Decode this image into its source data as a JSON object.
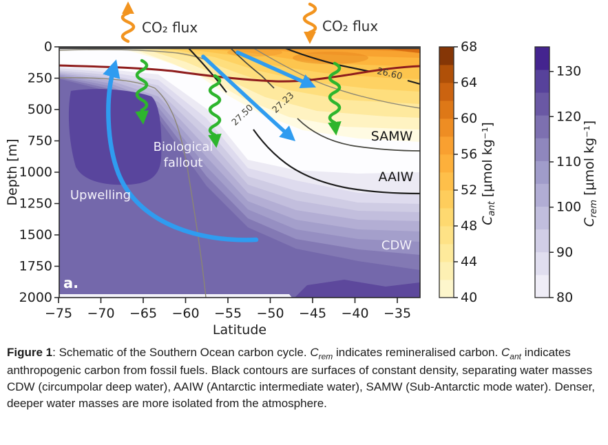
{
  "figure": {
    "panel_label": "a.",
    "xlabel": "Latitude",
    "ylabel": "Depth [m]",
    "xticks": [
      "−75",
      "−70",
      "−65",
      "−60",
      "−55",
      "−50",
      "−45",
      "−40",
      "−35"
    ],
    "yticks": [
      "0",
      "250",
      "500",
      "750",
      "1000",
      "1250",
      "1500",
      "1750",
      "2000"
    ],
    "annotations": {
      "co2_left": "CO₂ flux",
      "co2_right": "CO₂ flux",
      "bio_line1": "Biological",
      "bio_line2": "fallout",
      "upwelling": "Upwelling",
      "samw": "SAMW",
      "aaiw": "AAIW",
      "cdw": "CDW",
      "contour_2660": "26.60",
      "contour_2723": "27.23",
      "contour_2750": "27.50"
    },
    "colors": {
      "arrow_blue": "#2f9cf0",
      "arrow_green": "#2db52d",
      "arrow_orange": "#f2941f",
      "mixed_layer_red": "#8e1c1c",
      "deep_purple": "#59459d",
      "dark_orange": "#d96e12"
    }
  },
  "cant_bar": {
    "ticks": [
      "68",
      "64",
      "60",
      "56",
      "52",
      "48",
      "44",
      "40"
    ],
    "label_symbol": "C",
    "label_sub": "ant",
    "label_units": " [μmol kg⁻¹]",
    "colors": [
      "#fdf6cc",
      "#fdf0b3",
      "#feea9b",
      "#fee286",
      "#fed970",
      "#fecd5c",
      "#febf4a",
      "#fdb03b",
      "#f9a030",
      "#ee8d23",
      "#de7817",
      "#cb6310",
      "#b05008",
      "#853606"
    ]
  },
  "crem_bar": {
    "ticks": [
      "130",
      "120",
      "110",
      "100",
      "90",
      "80"
    ],
    "label_symbol": "C",
    "label_sub": "rem",
    "label_units": " [μmol kg⁻¹]",
    "colors": [
      "#efedf7",
      "#e0deef",
      "#d1cee6",
      "#c1bedd",
      "#b1add4",
      "#a09cca",
      "#8f87bd",
      "#7d70b0",
      "#6a58a4",
      "#57429b",
      "#44248f"
    ]
  },
  "caption": {
    "bold": "Figure 1",
    "t1": ": Schematic of the Southern Ocean carbon cycle. ",
    "sym1": "C",
    "sub1": "rem",
    "t2": " indicates remineralised carbon. ",
    "sym2": "C",
    "sub2": "ant",
    "t3": " indicates anthropogenic carbon from fossil fuels. Black contours are surfaces of constant density, separating water masses CDW (circumpolar deep water), AAIW (Antarctic intermediate water), SAMW (Sub-Antarctic mode water). Denser, deeper water masses are more isolated from the atmosphere."
  }
}
